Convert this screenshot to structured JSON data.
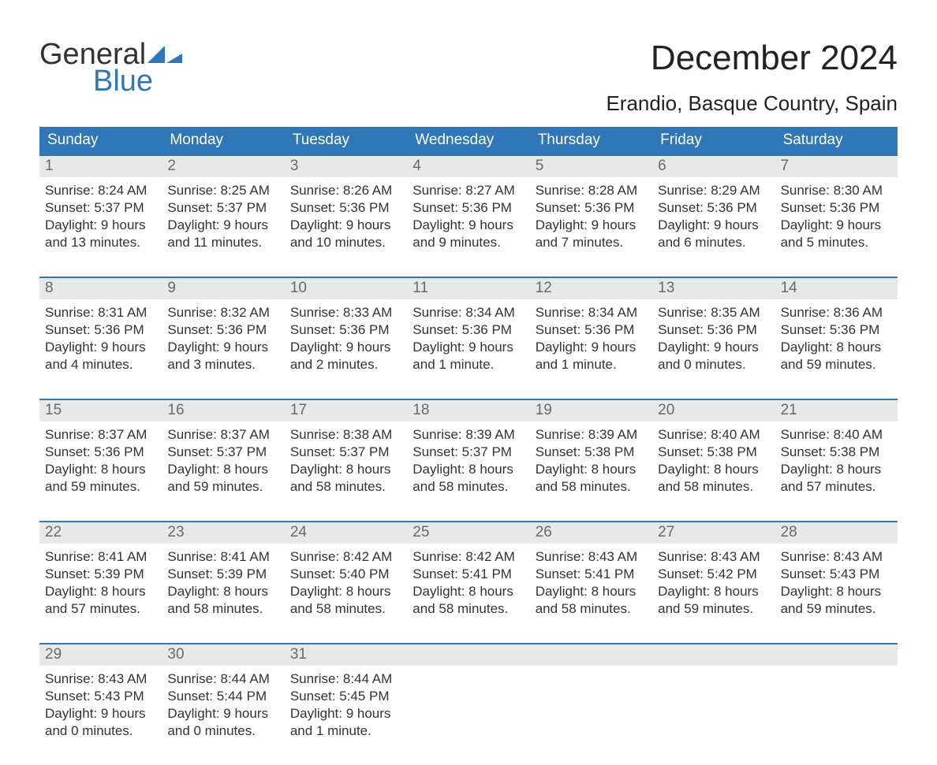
{
  "logo": {
    "dark": "General",
    "blue": "Blue",
    "shape_color": "#2f77b6"
  },
  "title": {
    "month": "December 2024",
    "location": "Erandio, Basque Country, Spain"
  },
  "colors": {
    "header_bg": "#2f77b6",
    "header_text": "#ffffff",
    "daynum_bg": "#e8e8e8",
    "daynum_text": "#6a6a6a",
    "body_text": "#333333",
    "rule": "#2f77b6"
  },
  "daynames": [
    "Sunday",
    "Monday",
    "Tuesday",
    "Wednesday",
    "Thursday",
    "Friday",
    "Saturday"
  ],
  "weeks": [
    [
      {
        "n": "1",
        "sr": "Sunrise: 8:24 AM",
        "ss": "Sunset: 5:37 PM",
        "d1": "Daylight: 9 hours",
        "d2": "and 13 minutes."
      },
      {
        "n": "2",
        "sr": "Sunrise: 8:25 AM",
        "ss": "Sunset: 5:37 PM",
        "d1": "Daylight: 9 hours",
        "d2": "and 11 minutes."
      },
      {
        "n": "3",
        "sr": "Sunrise: 8:26 AM",
        "ss": "Sunset: 5:36 PM",
        "d1": "Daylight: 9 hours",
        "d2": "and 10 minutes."
      },
      {
        "n": "4",
        "sr": "Sunrise: 8:27 AM",
        "ss": "Sunset: 5:36 PM",
        "d1": "Daylight: 9 hours",
        "d2": "and 9 minutes."
      },
      {
        "n": "5",
        "sr": "Sunrise: 8:28 AM",
        "ss": "Sunset: 5:36 PM",
        "d1": "Daylight: 9 hours",
        "d2": "and 7 minutes."
      },
      {
        "n": "6",
        "sr": "Sunrise: 8:29 AM",
        "ss": "Sunset: 5:36 PM",
        "d1": "Daylight: 9 hours",
        "d2": "and 6 minutes."
      },
      {
        "n": "7",
        "sr": "Sunrise: 8:30 AM",
        "ss": "Sunset: 5:36 PM",
        "d1": "Daylight: 9 hours",
        "d2": "and 5 minutes."
      }
    ],
    [
      {
        "n": "8",
        "sr": "Sunrise: 8:31 AM",
        "ss": "Sunset: 5:36 PM",
        "d1": "Daylight: 9 hours",
        "d2": "and 4 minutes."
      },
      {
        "n": "9",
        "sr": "Sunrise: 8:32 AM",
        "ss": "Sunset: 5:36 PM",
        "d1": "Daylight: 9 hours",
        "d2": "and 3 minutes."
      },
      {
        "n": "10",
        "sr": "Sunrise: 8:33 AM",
        "ss": "Sunset: 5:36 PM",
        "d1": "Daylight: 9 hours",
        "d2": "and 2 minutes."
      },
      {
        "n": "11",
        "sr": "Sunrise: 8:34 AM",
        "ss": "Sunset: 5:36 PM",
        "d1": "Daylight: 9 hours",
        "d2": "and 1 minute."
      },
      {
        "n": "12",
        "sr": "Sunrise: 8:34 AM",
        "ss": "Sunset: 5:36 PM",
        "d1": "Daylight: 9 hours",
        "d2": "and 1 minute."
      },
      {
        "n": "13",
        "sr": "Sunrise: 8:35 AM",
        "ss": "Sunset: 5:36 PM",
        "d1": "Daylight: 9 hours",
        "d2": "and 0 minutes."
      },
      {
        "n": "14",
        "sr": "Sunrise: 8:36 AM",
        "ss": "Sunset: 5:36 PM",
        "d1": "Daylight: 8 hours",
        "d2": "and 59 minutes."
      }
    ],
    [
      {
        "n": "15",
        "sr": "Sunrise: 8:37 AM",
        "ss": "Sunset: 5:36 PM",
        "d1": "Daylight: 8 hours",
        "d2": "and 59 minutes."
      },
      {
        "n": "16",
        "sr": "Sunrise: 8:37 AM",
        "ss": "Sunset: 5:37 PM",
        "d1": "Daylight: 8 hours",
        "d2": "and 59 minutes."
      },
      {
        "n": "17",
        "sr": "Sunrise: 8:38 AM",
        "ss": "Sunset: 5:37 PM",
        "d1": "Daylight: 8 hours",
        "d2": "and 58 minutes."
      },
      {
        "n": "18",
        "sr": "Sunrise: 8:39 AM",
        "ss": "Sunset: 5:37 PM",
        "d1": "Daylight: 8 hours",
        "d2": "and 58 minutes."
      },
      {
        "n": "19",
        "sr": "Sunrise: 8:39 AM",
        "ss": "Sunset: 5:38 PM",
        "d1": "Daylight: 8 hours",
        "d2": "and 58 minutes."
      },
      {
        "n": "20",
        "sr": "Sunrise: 8:40 AM",
        "ss": "Sunset: 5:38 PM",
        "d1": "Daylight: 8 hours",
        "d2": "and 58 minutes."
      },
      {
        "n": "21",
        "sr": "Sunrise: 8:40 AM",
        "ss": "Sunset: 5:38 PM",
        "d1": "Daylight: 8 hours",
        "d2": "and 57 minutes."
      }
    ],
    [
      {
        "n": "22",
        "sr": "Sunrise: 8:41 AM",
        "ss": "Sunset: 5:39 PM",
        "d1": "Daylight: 8 hours",
        "d2": "and 57 minutes."
      },
      {
        "n": "23",
        "sr": "Sunrise: 8:41 AM",
        "ss": "Sunset: 5:39 PM",
        "d1": "Daylight: 8 hours",
        "d2": "and 58 minutes."
      },
      {
        "n": "24",
        "sr": "Sunrise: 8:42 AM",
        "ss": "Sunset: 5:40 PM",
        "d1": "Daylight: 8 hours",
        "d2": "and 58 minutes."
      },
      {
        "n": "25",
        "sr": "Sunrise: 8:42 AM",
        "ss": "Sunset: 5:41 PM",
        "d1": "Daylight: 8 hours",
        "d2": "and 58 minutes."
      },
      {
        "n": "26",
        "sr": "Sunrise: 8:43 AM",
        "ss": "Sunset: 5:41 PM",
        "d1": "Daylight: 8 hours",
        "d2": "and 58 minutes."
      },
      {
        "n": "27",
        "sr": "Sunrise: 8:43 AM",
        "ss": "Sunset: 5:42 PM",
        "d1": "Daylight: 8 hours",
        "d2": "and 59 minutes."
      },
      {
        "n": "28",
        "sr": "Sunrise: 8:43 AM",
        "ss": "Sunset: 5:43 PM",
        "d1": "Daylight: 8 hours",
        "d2": "and 59 minutes."
      }
    ],
    [
      {
        "n": "29",
        "sr": "Sunrise: 8:43 AM",
        "ss": "Sunset: 5:43 PM",
        "d1": "Daylight: 9 hours",
        "d2": "and 0 minutes."
      },
      {
        "n": "30",
        "sr": "Sunrise: 8:44 AM",
        "ss": "Sunset: 5:44 PM",
        "d1": "Daylight: 9 hours",
        "d2": "and 0 minutes."
      },
      {
        "n": "31",
        "sr": "Sunrise: 8:44 AM",
        "ss": "Sunset: 5:45 PM",
        "d1": "Daylight: 9 hours",
        "d2": "and 1 minute."
      },
      {
        "n": "",
        "sr": "",
        "ss": "",
        "d1": "",
        "d2": ""
      },
      {
        "n": "",
        "sr": "",
        "ss": "",
        "d1": "",
        "d2": ""
      },
      {
        "n": "",
        "sr": "",
        "ss": "",
        "d1": "",
        "d2": ""
      },
      {
        "n": "",
        "sr": "",
        "ss": "",
        "d1": "",
        "d2": ""
      }
    ]
  ]
}
